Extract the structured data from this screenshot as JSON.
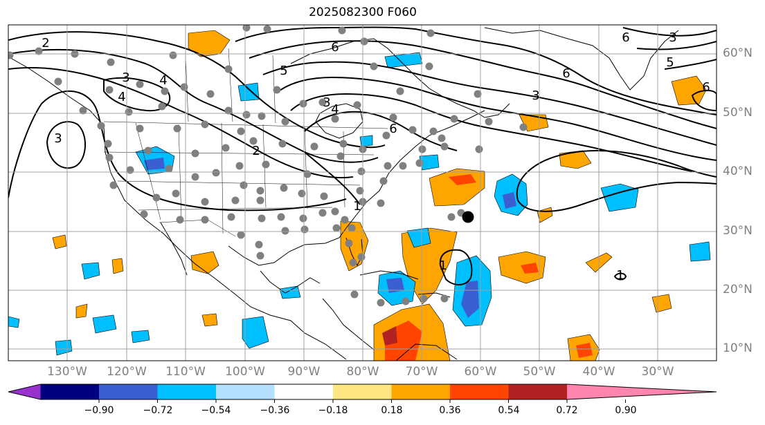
{
  "title": "2025082300 F060",
  "lon_labels": [
    "130°W",
    "120°W",
    "110°W",
    "100°W",
    "90°W",
    "80°W",
    "70°W",
    "60°W",
    "50°W",
    "40°W",
    "30°W"
  ],
  "lat_labels": [
    "60°N",
    "50°N",
    "40°N",
    "30°N",
    "20°N",
    "10°N"
  ],
  "contour_labels": [
    "2",
    "3",
    "4",
    "3",
    "4",
    "6",
    "5",
    "4",
    "3",
    "6",
    "3",
    "6",
    "6",
    "3",
    "5",
    "6",
    "2",
    "1",
    "1",
    "1"
  ],
  "colorbar": {
    "ticks": [
      "−0.90",
      "−0.72",
      "−0.54",
      "−0.36",
      "−0.18",
      "0.18",
      "0.36",
      "0.54",
      "0.72",
      "0.90"
    ],
    "colors": [
      "#9932cc",
      "#000080",
      "#3b5fd0",
      "#00bfff",
      "#b3e0ff",
      "#ffffff",
      "#ffe680",
      "#ffa500",
      "#ff4500",
      "#b22222",
      "#ff85b0"
    ]
  }
}
